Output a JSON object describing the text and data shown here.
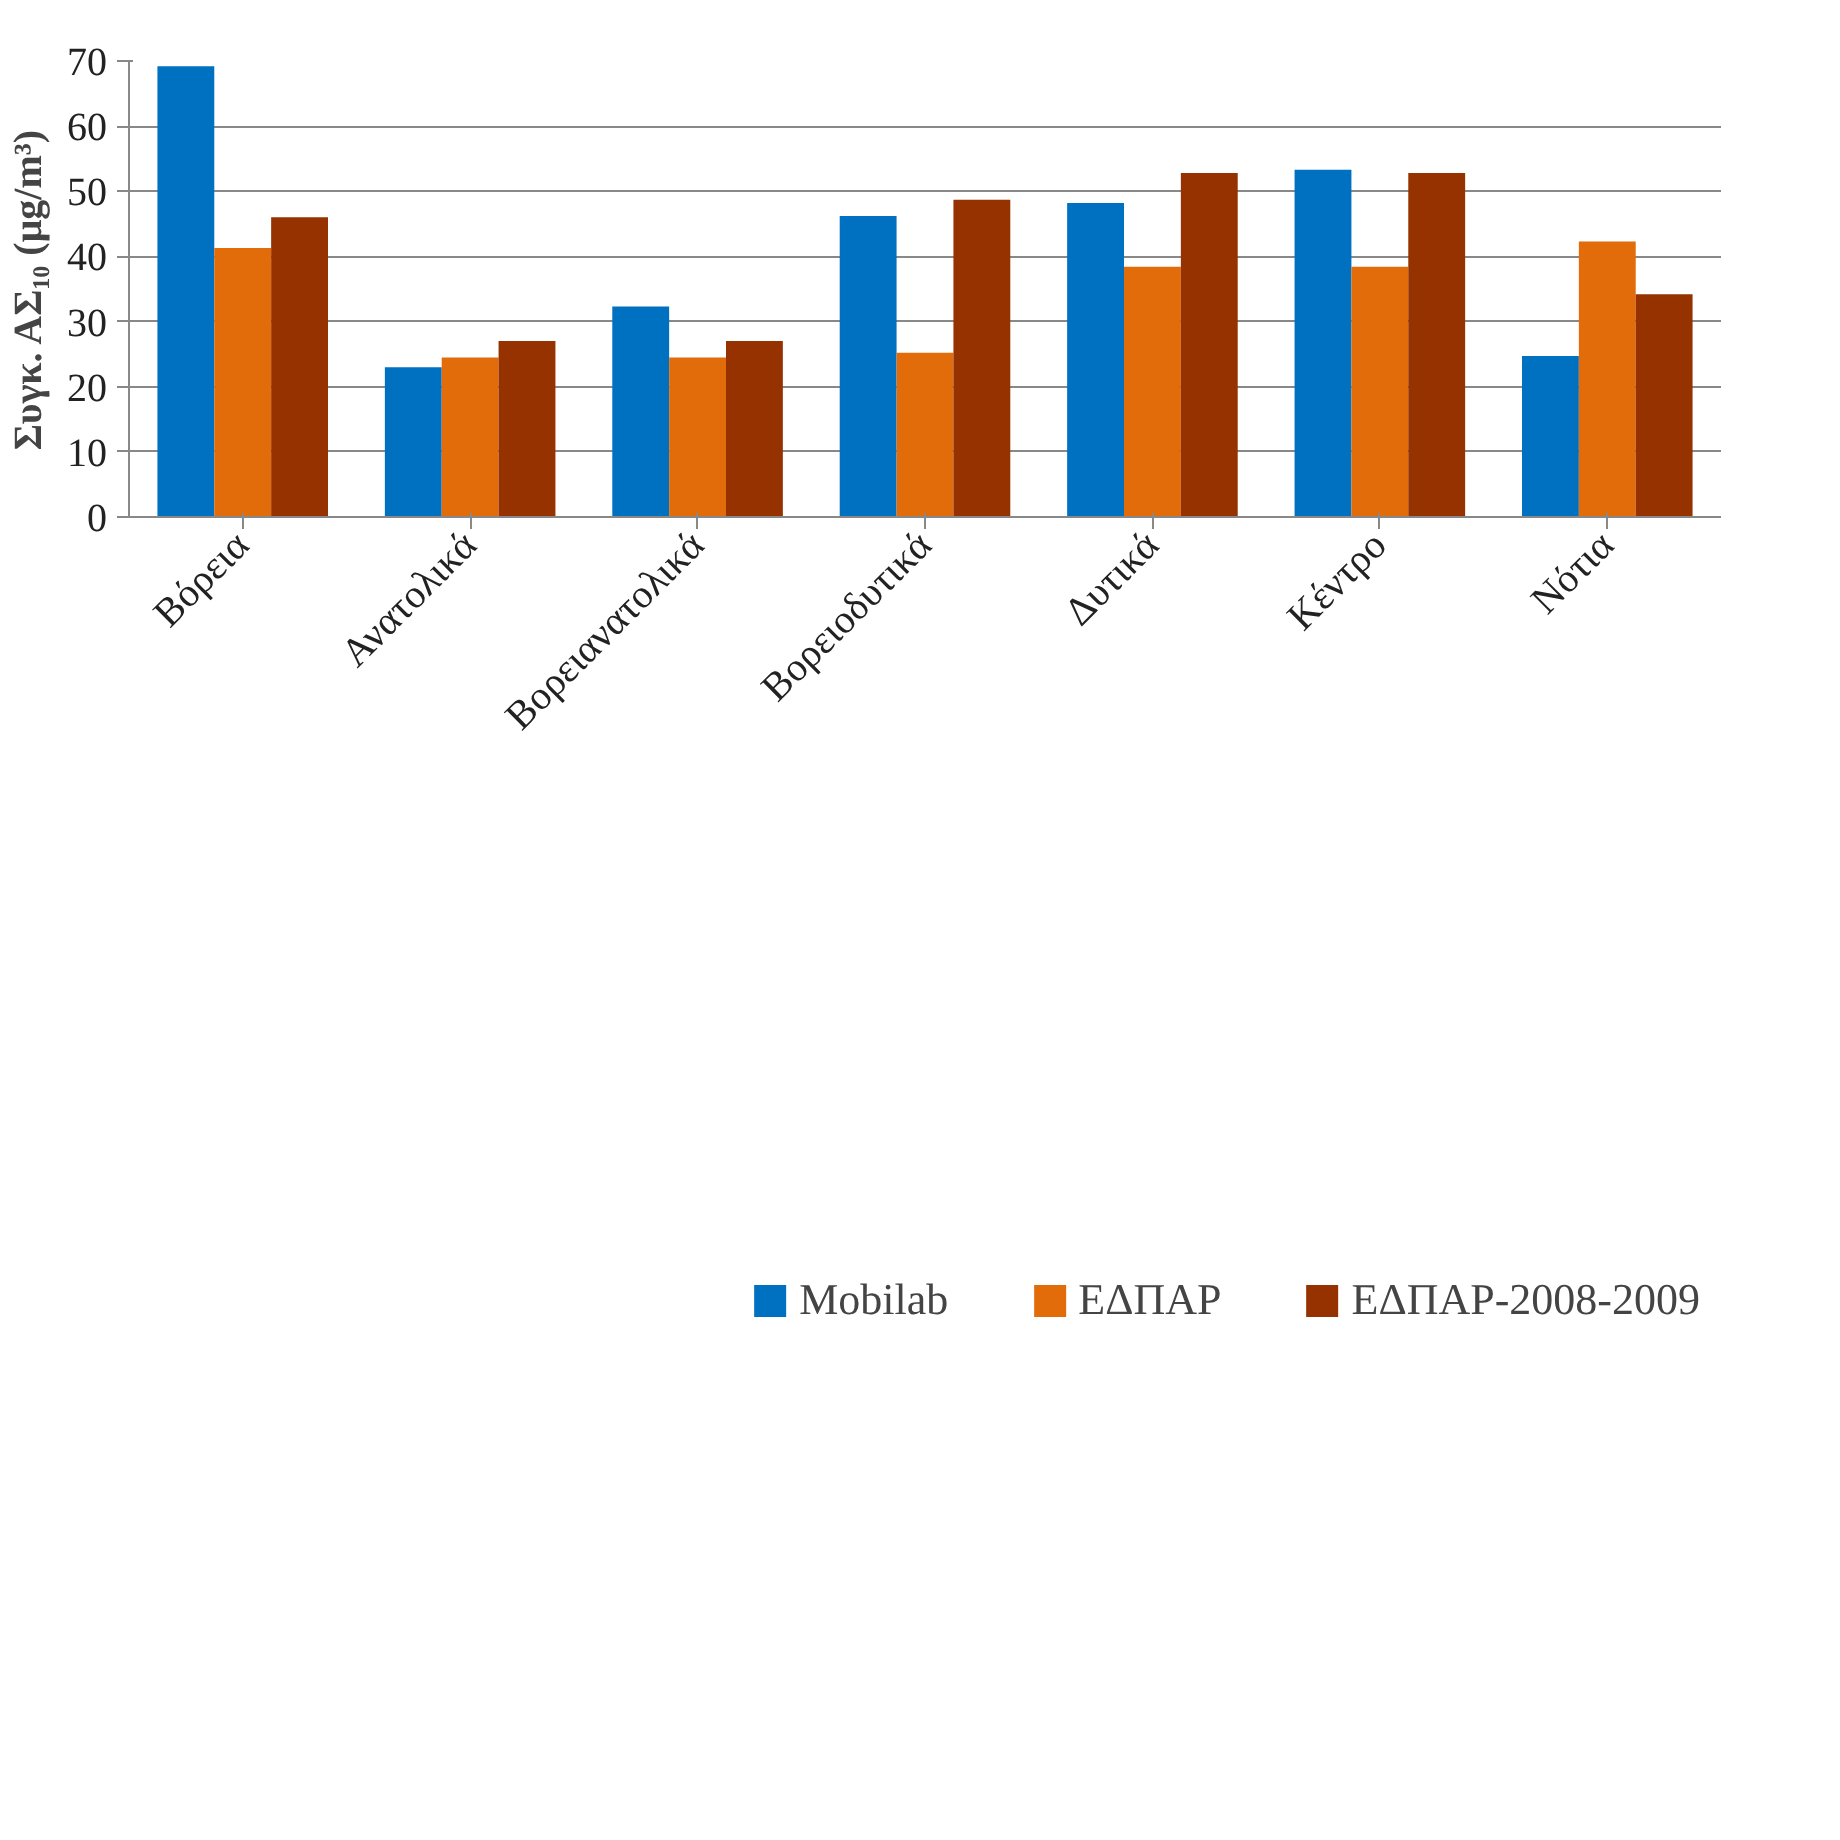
{
  "chart_data": {
    "type": "bar",
    "ylabel": "Συγκ. ΑΣ₁₀ (μg/m³)",
    "categories": [
      "Βόρεια",
      "Ανατολικά",
      "Βορειανατολικά",
      "Βορειοδυτικά",
      "Δυτικά",
      "Κέντρο",
      "Νότια"
    ],
    "series": [
      {
        "name": "Mobilab",
        "color": "#0070c0",
        "values": [
          69.2,
          23.0,
          32.3,
          46.2,
          48.2,
          53.3,
          24.7
        ]
      },
      {
        "name": "ΕΔΠΑΡ",
        "color": "#e26b0a",
        "values": [
          41.3,
          24.5,
          24.5,
          25.2,
          38.4,
          38.4,
          42.3
        ]
      },
      {
        "name": "ΕΔΠΑΡ-2008-2009",
        "color": "#953200",
        "values": [
          46.0,
          27.0,
          27.0,
          48.7,
          52.8,
          52.8,
          34.2
        ]
      }
    ],
    "ylim": [
      0,
      70
    ],
    "yticks": [
      0,
      10,
      20,
      30,
      40,
      50,
      60,
      70
    ],
    "grid": "y",
    "legend": "bottom"
  }
}
